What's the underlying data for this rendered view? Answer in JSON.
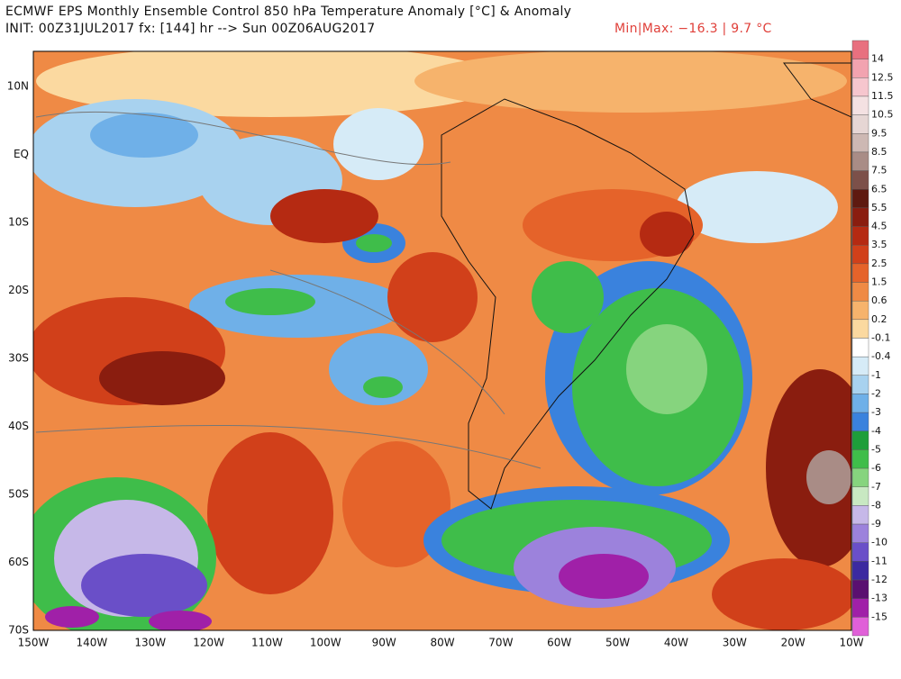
{
  "header": {
    "title": "ECMWF EPS Monthly Ensemble Control 850 hPa Temperature Anomaly [°C] & Anomaly",
    "init": "INIT: 00Z31JUL2017 fx: [144] hr --> Sun 00Z06AUG2017",
    "minmax": "Min|Max: −16.3 | 9.7 °C"
  },
  "map": {
    "lat_labels": [
      "10N",
      "EQ",
      "10S",
      "20S",
      "30S",
      "40S",
      "50S",
      "60S",
      "70S"
    ],
    "lon_labels": [
      "150W",
      "140W",
      "130W",
      "120W",
      "110W",
      "100W",
      "90W",
      "80W",
      "70W",
      "60W",
      "50W",
      "40W",
      "30W",
      "20W",
      "10W"
    ],
    "colorbar": {
      "labels": [
        "14",
        "12.5",
        "11.5",
        "10.5",
        "9.5",
        "8.5",
        "7.5",
        "6.5",
        "5.5",
        "4.5",
        "3.5",
        "2.5",
        "1.5",
        "0.6",
        "0.2",
        "-0.1",
        "-0.4",
        "-1",
        "-2",
        "-3",
        "-4",
        "-5",
        "-6",
        "-7",
        "-8",
        "-9",
        "-10",
        "-11",
        "-12",
        "-13",
        "-15"
      ],
      "colors": [
        "#e8707f",
        "#f2a3b0",
        "#f6c6ce",
        "#f4e1e2",
        "#e6d6d4",
        "#cdb8b3",
        "#a98c86",
        "#7c5049",
        "#5e1a10",
        "#8a1d0f",
        "#b52a12",
        "#d1401a",
        "#e5632a",
        "#ef8a45",
        "#f6b36c",
        "#fbd9a0",
        "#ffffff",
        "#d6ebf7",
        "#a8d2ef",
        "#6fb0e8",
        "#3a82dd",
        "#1e9e3a",
        "#3fbd4a",
        "#86d47e",
        "#c8e8c2",
        "#c6b8e8",
        "#9c82dc",
        "#6a4fc8",
        "#3b2aa0",
        "#5a1070",
        "#a020a8",
        "#e060d8"
      ]
    }
  }
}
